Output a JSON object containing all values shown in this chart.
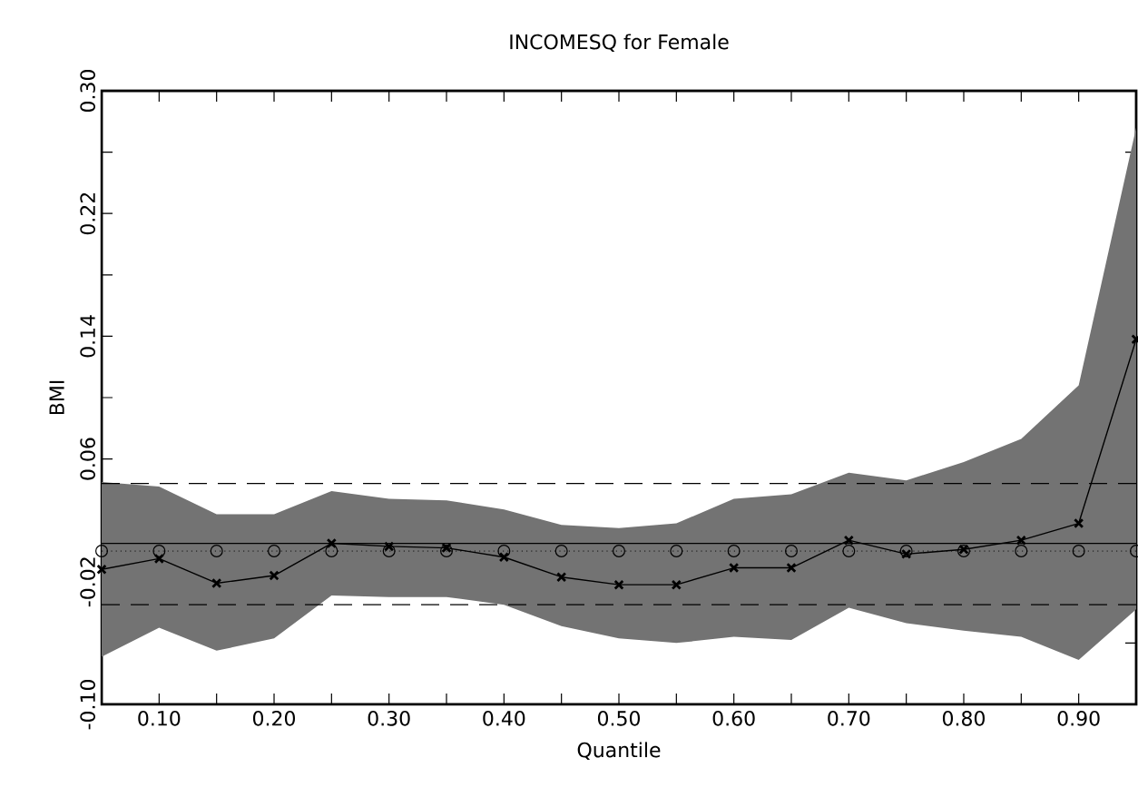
{
  "chart_data": {
    "type": "line",
    "title": "INCOMESQ for Female",
    "xlabel": "Quantile",
    "ylabel": "BMI",
    "x": [
      0.05,
      0.1,
      0.15,
      0.2,
      0.25,
      0.3,
      0.35,
      0.4,
      0.45,
      0.5,
      0.55,
      0.6,
      0.65,
      0.7,
      0.75,
      0.8,
      0.85,
      0.9,
      0.95
    ],
    "series": [
      {
        "color": "#000000",
        "marker": "cross",
        "line_style": "solid",
        "values": [
          -0.012,
          -0.005,
          -0.021,
          -0.016,
          0.005,
          0.003,
          0.002,
          -0.004,
          -0.017,
          -0.022,
          -0.022,
          -0.011,
          -0.011,
          0.007,
          -0.002,
          0.001,
          0.007,
          0.018,
          0.138
        ],
        "lower": [
          -0.069,
          -0.05,
          -0.065,
          -0.057,
          -0.029,
          -0.03,
          -0.03,
          -0.035,
          -0.049,
          -0.057,
          -0.06,
          -0.056,
          -0.058,
          -0.037,
          -0.047,
          -0.052,
          -0.056,
          -0.071,
          -0.038
        ],
        "upper": [
          0.045,
          0.042,
          0.024,
          0.024,
          0.039,
          0.034,
          0.033,
          0.027,
          0.017,
          0.015,
          0.018,
          0.034,
          0.037,
          0.051,
          0.046,
          0.058,
          0.073,
          0.108,
          0.276
        ]
      },
      {
        "type": "scatter",
        "color": "#000000",
        "marker": "circle",
        "values": [
          0,
          0,
          0,
          0,
          0,
          0,
          0,
          0,
          0,
          0,
          0,
          0,
          0,
          0,
          0,
          0,
          0,
          0,
          0
        ]
      }
    ],
    "ref_lines": [
      {
        "axis": "y",
        "value": 0.005,
        "color": "#000000",
        "line_style": "solid"
      },
      {
        "axis": "y",
        "value": 0.044,
        "color": "#000000",
        "line_style": "dashed"
      },
      {
        "axis": "y",
        "value": -0.035,
        "color": "#000000",
        "line_style": "dashed"
      },
      {
        "axis": "y",
        "value": 0,
        "color": "#000000",
        "line_style": "dotted"
      }
    ],
    "xlim": [
      0.05,
      0.95
    ],
    "xticks": [
      {
        "value": 0.05,
        "label": null
      },
      {
        "value": 0.1,
        "label": "0.10"
      },
      {
        "value": 0.15,
        "label": null
      },
      {
        "value": 0.2,
        "label": "0.20"
      },
      {
        "value": 0.25,
        "label": null
      },
      {
        "value": 0.3,
        "label": "0.30"
      },
      {
        "value": 0.35,
        "label": null
      },
      {
        "value": 0.4,
        "label": "0.40"
      },
      {
        "value": 0.45,
        "label": null
      },
      {
        "value": 0.5,
        "label": "0.50"
      },
      {
        "value": 0.55,
        "label": null
      },
      {
        "value": 0.6,
        "label": "0.60"
      },
      {
        "value": 0.65,
        "label": null
      },
      {
        "value": 0.7,
        "label": "0.70"
      },
      {
        "value": 0.75,
        "label": null
      },
      {
        "value": 0.8,
        "label": "0.80"
      },
      {
        "value": 0.85,
        "label": null
      },
      {
        "value": 0.9,
        "label": "0.90"
      },
      {
        "value": 0.95,
        "label": null
      }
    ],
    "ylim": [
      -0.1,
      0.3
    ],
    "yticks": [
      {
        "value": -0.1,
        "label": "-0.10"
      },
      {
        "value": -0.06,
        "label": null
      },
      {
        "value": -0.02,
        "label": "-0.02"
      },
      {
        "value": 0.02,
        "label": null
      },
      {
        "value": 0.06,
        "label": "0.06"
      },
      {
        "value": 0.1,
        "label": null
      },
      {
        "value": 0.14,
        "label": "0.14"
      },
      {
        "value": 0.18,
        "label": null
      },
      {
        "value": 0.22,
        "label": "0.22"
      },
      {
        "value": 0.26,
        "label": null
      },
      {
        "value": 0.3,
        "label": "0.30"
      }
    ]
  }
}
